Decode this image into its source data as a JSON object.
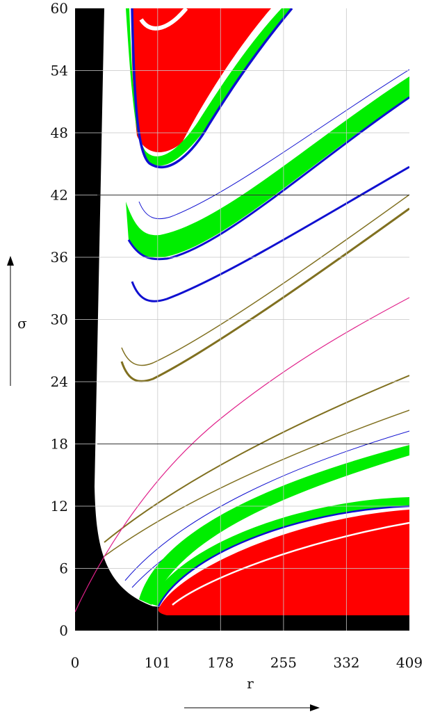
{
  "chart_data": {
    "type": "heatmap",
    "title": "",
    "xlabel": "r",
    "ylabel": "σ",
    "x_ticks": [
      "0",
      "101",
      "178",
      "255",
      "332",
      "409"
    ],
    "x_tick_values": [
      0,
      101,
      178,
      255,
      332,
      409
    ],
    "y_ticks": [
      "0",
      "6",
      "12",
      "18",
      "24",
      "30",
      "36",
      "42",
      "48",
      "54",
      "60"
    ],
    "y_tick_values": [
      0,
      6,
      12,
      18,
      24,
      30,
      36,
      42,
      48,
      54,
      60
    ],
    "xlim": [
      0,
      409
    ],
    "ylim": [
      0,
      60
    ],
    "grid": true,
    "reference_lines_sigma": [
      18,
      42
    ],
    "colors": {
      "black_region": "#000000",
      "background": "#ffffff",
      "red": "#ff0000",
      "green": "#00ee00",
      "blue": "#1010d0",
      "olive": "#807020",
      "magenta": "#e0208a",
      "cyan": "#40c0e0",
      "grid": "#c8c8c8",
      "hline": "#333333"
    }
  }
}
